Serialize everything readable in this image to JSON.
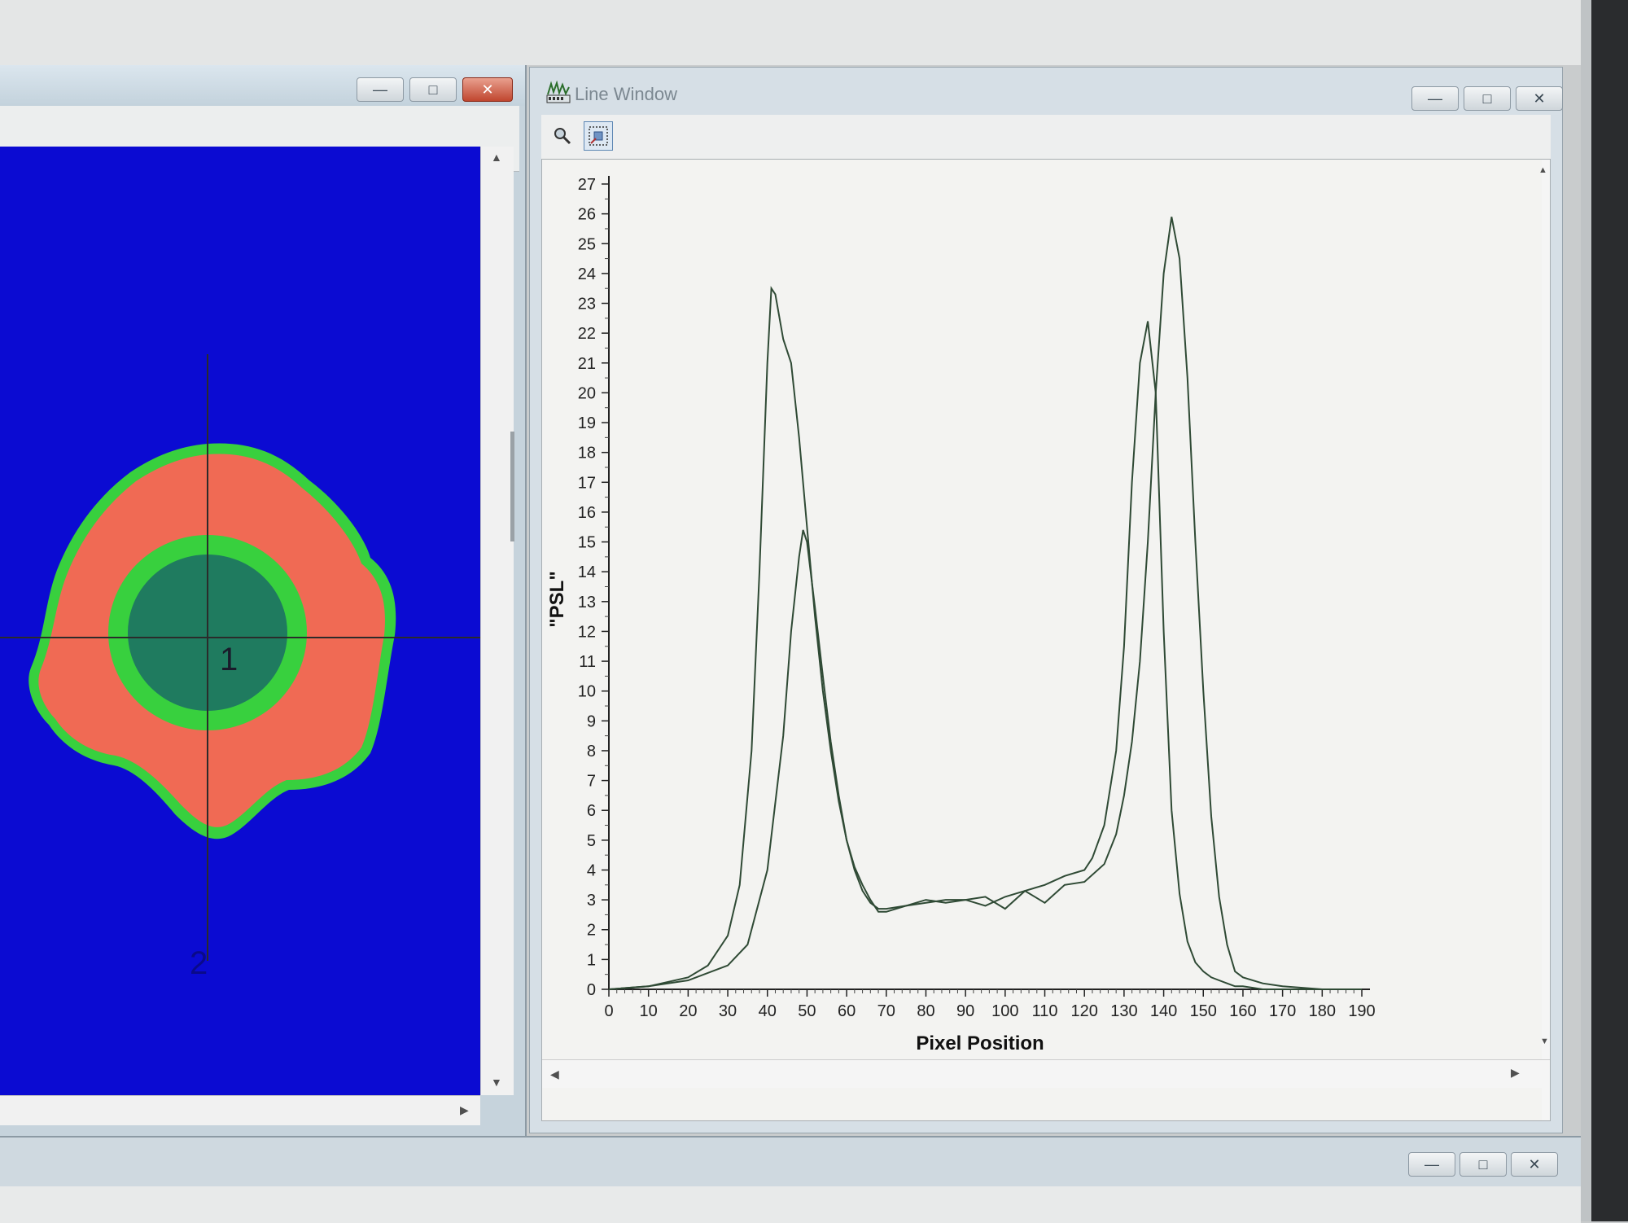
{
  "line_window": {
    "title": "Line Window"
  },
  "image_window": {
    "markers": [
      "1",
      "2"
    ]
  },
  "colors": {
    "background_blue": "#0b0bd2",
    "region_red": "#f06a54",
    "ring_green": "#38d03e",
    "core_teal": "#1f7b5f",
    "plot_line": "#2f4a35"
  },
  "icons": [
    "minimize-icon",
    "maximize-icon",
    "close-icon",
    "magnifier-icon",
    "zoom-region-icon",
    "line-profile-app-icon"
  ],
  "chart_data": {
    "type": "line",
    "xlabel": "Pixel Position",
    "ylabel": "\"PSL\"",
    "xlim": [
      0,
      190
    ],
    "ylim": [
      0,
      27
    ],
    "x_ticks": [
      0,
      10,
      20,
      30,
      40,
      50,
      60,
      70,
      80,
      90,
      100,
      110,
      120,
      130,
      140,
      150,
      160,
      170,
      180,
      190
    ],
    "y_ticks": [
      0,
      1,
      2,
      3,
      4,
      5,
      6,
      7,
      8,
      9,
      10,
      11,
      12,
      13,
      14,
      15,
      16,
      17,
      18,
      19,
      20,
      21,
      22,
      23,
      24,
      25,
      26,
      27
    ],
    "grid": false,
    "legend": "none",
    "series": [
      {
        "x": [
          0,
          10,
          20,
          25,
          30,
          33,
          36,
          38,
          40,
          41,
          42,
          44,
          46,
          48,
          50,
          52,
          54,
          56,
          58,
          60,
          62,
          64,
          66,
          68,
          70,
          75,
          80,
          85,
          90,
          95,
          100,
          105,
          110,
          115,
          120,
          122,
          125,
          128,
          130,
          132,
          134,
          136,
          138,
          140,
          142,
          144,
          146,
          148,
          150,
          152,
          154,
          156,
          158,
          160,
          165,
          170,
          180,
          190
        ],
        "y": [
          0,
          0.1,
          0.4,
          0.8,
          1.8,
          3.5,
          8,
          14,
          21,
          23.5,
          23.3,
          21.8,
          21,
          18.5,
          15.5,
          12.5,
          10,
          8,
          6.3,
          5,
          4.1,
          3.5,
          3,
          2.6,
          2.6,
          2.8,
          2.9,
          3.0,
          3.0,
          2.8,
          3.1,
          3.3,
          3.5,
          3.8,
          4.0,
          4.4,
          5.5,
          8,
          11.5,
          17,
          21,
          22.4,
          20,
          12,
          6,
          3.2,
          1.6,
          0.9,
          0.6,
          0.4,
          0.3,
          0.2,
          0.1,
          0.1,
          0,
          0,
          0,
          0
        ]
      },
      {
        "x": [
          0,
          10,
          20,
          30,
          35,
          40,
          44,
          46,
          48,
          49,
          50,
          52,
          54,
          56,
          58,
          60,
          62,
          64,
          66,
          68,
          70,
          75,
          80,
          85,
          90,
          95,
          100,
          105,
          110,
          115,
          120,
          125,
          128,
          130,
          132,
          134,
          136,
          138,
          140,
          142,
          144,
          146,
          148,
          150,
          152,
          154,
          156,
          158,
          160,
          165,
          170,
          180,
          190
        ],
        "y": [
          0,
          0.1,
          0.3,
          0.8,
          1.5,
          4,
          8.5,
          12,
          14.5,
          15.4,
          15,
          12.8,
          10.5,
          8.3,
          6.5,
          5,
          4,
          3.3,
          2.9,
          2.7,
          2.7,
          2.8,
          3.0,
          2.9,
          3.0,
          3.1,
          2.7,
          3.3,
          2.9,
          3.5,
          3.6,
          4.2,
          5.2,
          6.5,
          8.3,
          11,
          15,
          20,
          24,
          25.9,
          24.5,
          20.5,
          15,
          10,
          5.8,
          3.1,
          1.5,
          0.6,
          0.4,
          0.2,
          0.1,
          0,
          0
        ]
      }
    ]
  }
}
